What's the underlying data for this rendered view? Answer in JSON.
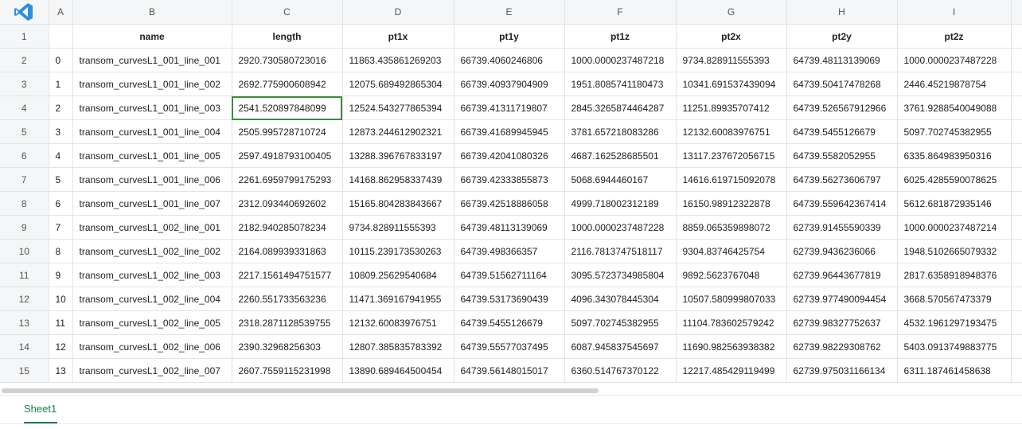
{
  "columns": [
    "A",
    "B",
    "C",
    "D",
    "E",
    "F",
    "G",
    "H",
    "I"
  ],
  "row_numbers": [
    "1",
    "2",
    "3",
    "4",
    "5",
    "6",
    "7",
    "8",
    "9",
    "10",
    "11",
    "12",
    "13",
    "14",
    "15"
  ],
  "header": [
    "",
    "name",
    "length",
    "pt1x",
    "pt1y",
    "pt1z",
    "pt2x",
    "pt2y",
    "pt2z"
  ],
  "rows": [
    [
      "0",
      "transom_curvesL1_001_line_001",
      "2920.730580723016",
      "11863.435861269203",
      "66739.4060246806",
      "1000.0000237487218",
      "9734.828911555393",
      "64739.48113139069",
      "1000.0000237487228"
    ],
    [
      "1",
      "transom_curvesL1_001_line_002",
      "2692.775900608942",
      "12075.689492865304",
      "66739.40937904909",
      "1951.8085741180473",
      "10341.691537439094",
      "64739.50417478268",
      "2446.45219878754"
    ],
    [
      "2",
      "transom_curvesL1_001_line_003",
      "2541.520897848099",
      "12524.543277865394",
      "66739.41311719807",
      "2845.3265874464287",
      "11251.89935707412",
      "64739.526567912966",
      "3761.9288540049088"
    ],
    [
      "3",
      "transom_curvesL1_001_line_004",
      "2505.995728710724",
      "12873.244612902321",
      "66739.41689945945",
      "3781.657218083286",
      "12132.60083976751",
      "64739.5455126679",
      "5097.702745382955"
    ],
    [
      "4",
      "transom_curvesL1_001_line_005",
      "2597.4918793100405",
      "13288.396767833197",
      "66739.42041080326",
      "4687.162528685501",
      "13117.237672056715",
      "64739.5582052955",
      "6335.864983950316"
    ],
    [
      "5",
      "transom_curvesL1_001_line_006",
      "2261.6959799175293",
      "14168.862958337439",
      "66739.42333855873",
      "5068.6944460167",
      "14616.619715092078",
      "64739.56273606797",
      "6025.4285590078625"
    ],
    [
      "6",
      "transom_curvesL1_001_line_007",
      "2312.093440692602",
      "15165.804283843667",
      "66739.42518886058",
      "4999.718002312189",
      "16150.98912322878",
      "64739.559642367414",
      "5612.681872935146"
    ],
    [
      "7",
      "transom_curvesL1_002_line_001",
      "2182.940285078234",
      "9734.828911555393",
      "64739.48113139069",
      "1000.0000237487228",
      "8859.065359898072",
      "62739.91455590339",
      "1000.0000237487214"
    ],
    [
      "8",
      "transom_curvesL1_002_line_002",
      "2164.089939331863",
      "10115.239173530263",
      "64739.498366357",
      "2116.7813747518117",
      "9304.83746425754",
      "62739.9436236066",
      "1948.5102665079332"
    ],
    [
      "9",
      "transom_curvesL1_002_line_003",
      "2217.1561494751577",
      "10809.25629540684",
      "64739.51562711164",
      "3095.5723734985804",
      "9892.5623767048",
      "62739.96443677819",
      "2817.6358918948376"
    ],
    [
      "10",
      "transom_curvesL1_002_line_004",
      "2260.551733563236",
      "11471.369167941955",
      "64739.53173690439",
      "4096.343078445304",
      "10507.580999807033",
      "62739.977490094454",
      "3668.570567473379"
    ],
    [
      "11",
      "transom_curvesL1_002_line_005",
      "2318.2871128539755",
      "12132.60083976751",
      "64739.5455126679",
      "5097.702745382955",
      "11104.783602579242",
      "62739.98327752637",
      "4532.1961297193475"
    ],
    [
      "12",
      "transom_curvesL1_002_line_006",
      "2390.32968256303",
      "12807.385835783392",
      "64739.55577037495",
      "6087.945837545697",
      "11690.982563938382",
      "62739.98229308762",
      "5403.0913749883775"
    ],
    [
      "13",
      "transom_curvesL1_002_line_007",
      "2607.7559115231998",
      "13890.689464500454",
      "64739.56148015017",
      "6360.514767370122",
      "12217.485429119499",
      "62739.975031166134",
      "6311.187461458638"
    ]
  ],
  "sheet_tab": "Sheet1",
  "colors": {
    "accent": "#1a7f4b",
    "selection": "#3d8a3d",
    "logo": "#2f8fe0"
  }
}
